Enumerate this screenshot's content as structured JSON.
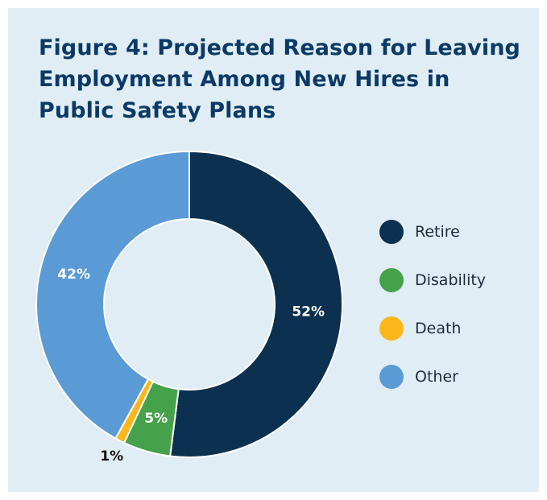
{
  "chart_data": {
    "type": "pie",
    "title_prefix": "Figure 4:",
    "title": "Projected Reason for Leaving Employment Among New Hires in Public Safety Plans",
    "categories": [
      "Retire",
      "Disability",
      "Death",
      "Other"
    ],
    "values": [
      52,
      5,
      1,
      42
    ],
    "labels": [
      "52%",
      "5%",
      "1%",
      "42%"
    ],
    "colors": [
      "#0b3050",
      "#46a14b",
      "#fbb61b",
      "#5b9bd5"
    ],
    "donut": true,
    "legend_position": "right"
  }
}
